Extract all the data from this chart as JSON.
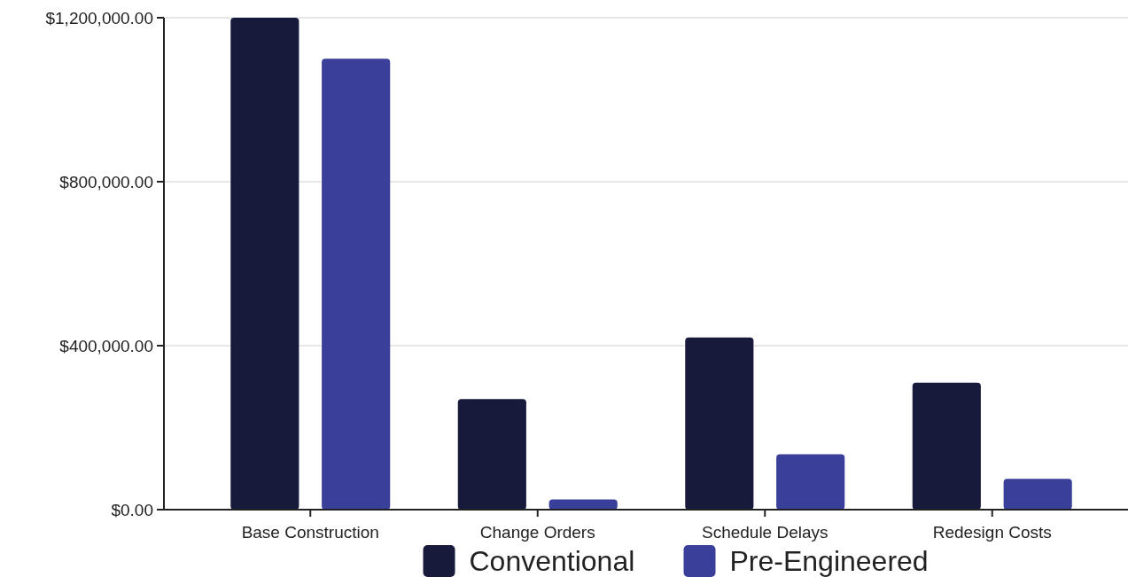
{
  "chart_data": {
    "type": "bar",
    "categories": [
      "Base Construction",
      "Change Orders",
      "Schedule Delays",
      "Redesign Costs"
    ],
    "series": [
      {
        "name": "Conventional",
        "color": "#181a3b",
        "values": [
          1200000,
          270000,
          420000,
          310000
        ]
      },
      {
        "name": "Pre-Engineered",
        "color": "#3a3f9a",
        "values": [
          1100000,
          25000,
          135000,
          75000
        ]
      }
    ],
    "ylim": [
      0,
      1200000
    ],
    "yticks": [
      {
        "value": 0,
        "label": "$0.00"
      },
      {
        "value": 400000,
        "label": "$400,000.00"
      },
      {
        "value": 800000,
        "label": "$800,000.00"
      },
      {
        "value": 1200000,
        "label": "$1,200,000.00"
      }
    ],
    "grid": "y",
    "legend": "bottom"
  }
}
